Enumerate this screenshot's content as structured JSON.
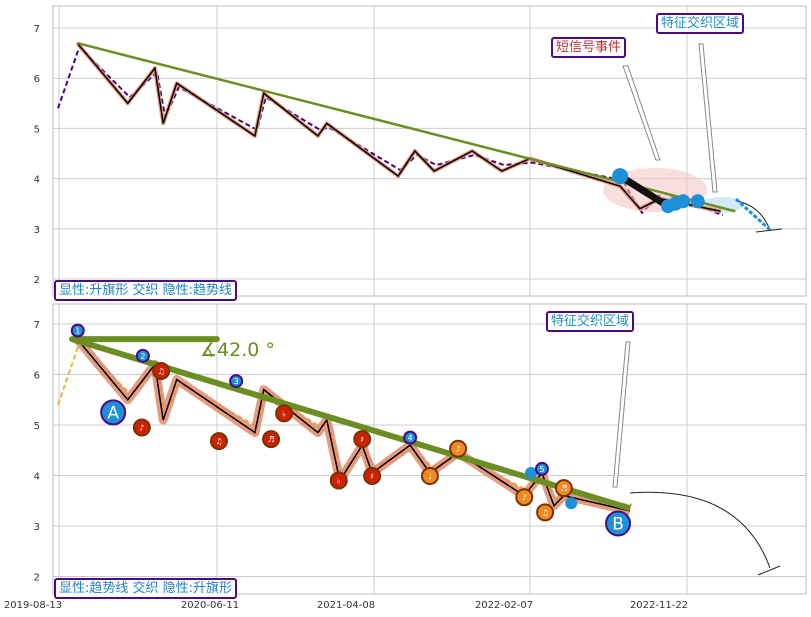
{
  "chart_data": [
    {
      "type": "line",
      "panel": "top",
      "ylim": [
        1.6,
        7.4
      ],
      "yticks": [
        2,
        3,
        4,
        5,
        6,
        7
      ],
      "x_unit": "days since 2019-08-13",
      "xlim": [
        -50,
        1440
      ],
      "grid": true,
      "zigzag": [
        [
          35,
          6.7
        ],
        [
          132,
          5.5
        ],
        [
          184,
          6.2
        ],
        [
          200,
          5.1
        ],
        [
          226,
          5.9
        ],
        [
          376,
          4.85
        ],
        [
          393,
          5.7
        ],
        [
          497,
          4.85
        ],
        [
          514,
          5.1
        ],
        [
          651,
          4.05
        ],
        [
          683,
          4.55
        ],
        [
          720,
          4.15
        ],
        [
          793,
          4.55
        ],
        [
          850,
          4.15
        ],
        [
          904,
          4.4
        ],
        [
          1077,
          3.85
        ],
        [
          1115,
          3.4
        ],
        [
          1154,
          3.6
        ],
        [
          1270,
          3.35
        ]
      ],
      "trendline": [
        [
          35,
          6.7
        ],
        [
          1298,
          3.35
        ]
      ],
      "event_dots": [
        [
          1077,
          4.05
        ],
        [
          1169,
          3.45
        ],
        [
          1183,
          3.5
        ],
        [
          1198,
          3.55
        ],
        [
          1226,
          3.55
        ]
      ],
      "annotations": {
        "short_signal": "短信号事件",
        "zone": "特征交织区域"
      },
      "legend": "显性:升旗形 交织 隐性:趋势线"
    },
    {
      "type": "line",
      "panel": "bottom",
      "ylim": [
        1.6,
        7.4
      ],
      "yticks": [
        2,
        3,
        4,
        5,
        6,
        7
      ],
      "xticks": [
        "2019-08-13",
        "2020-06-11",
        "2021-04-08",
        "2022-02-07",
        "2022-11-22"
      ],
      "zigzag": [
        [
          35,
          6.7
        ],
        [
          132,
          5.5
        ],
        [
          184,
          6.2
        ],
        [
          200,
          5.1
        ],
        [
          226,
          5.9
        ],
        [
          376,
          4.85
        ],
        [
          393,
          5.7
        ],
        [
          497,
          4.85
        ],
        [
          514,
          5.1
        ],
        [
          539,
          3.9
        ],
        [
          582,
          4.6
        ],
        [
          601,
          4.05
        ],
        [
          674,
          4.6
        ],
        [
          712,
          4.05
        ],
        [
          766,
          4.45
        ],
        [
          893,
          3.6
        ],
        [
          927,
          4.05
        ],
        [
          950,
          3.4
        ],
        [
          969,
          3.6
        ],
        [
          1096,
          3.3
        ]
      ],
      "trendline": [
        [
          25,
          6.7
        ],
        [
          1096,
          3.35
        ]
      ],
      "baseline": [
        [
          25,
          6.7
        ],
        [
          303,
          6.7
        ]
      ],
      "angle_label": "∡42.0 °",
      "markers": [
        {
          "d": 36,
          "v": 6.87,
          "t": "1",
          "c": "blue"
        },
        {
          "d": 104,
          "v": 5.25,
          "t": "A",
          "c": "bigblue"
        },
        {
          "d": 161,
          "v": 6.37,
          "t": "2",
          "c": "blue"
        },
        {
          "d": 159,
          "v": 4.95,
          "t": "♪",
          "c": "red"
        },
        {
          "d": 196,
          "v": 6.07,
          "t": "♫",
          "c": "red"
        },
        {
          "d": 340,
          "v": 5.87,
          "t": "3",
          "c": "blue"
        },
        {
          "d": 307,
          "v": 4.68,
          "t": "♫",
          "c": "red"
        },
        {
          "d": 407,
          "v": 4.72,
          "t": "♬",
          "c": "red"
        },
        {
          "d": 432,
          "v": 5.23,
          "t": "♭",
          "c": "red"
        },
        {
          "d": 537,
          "v": 3.9,
          "t": "♭",
          "c": "red"
        },
        {
          "d": 582,
          "v": 4.72,
          "t": "♯",
          "c": "red"
        },
        {
          "d": 601,
          "v": 3.99,
          "t": "♯",
          "c": "red"
        },
        {
          "d": 674,
          "v": 4.75,
          "t": "4",
          "c": "blue"
        },
        {
          "d": 712,
          "v": 3.99,
          "t": "♩",
          "c": "orange"
        },
        {
          "d": 766,
          "v": 4.53,
          "t": "♪",
          "c": "orange"
        },
        {
          "d": 893,
          "v": 3.57,
          "t": "♪",
          "c": "orange"
        },
        {
          "d": 906,
          "v": 4.05,
          "t": "",
          "c": "dot"
        },
        {
          "d": 927,
          "v": 4.13,
          "t": "5",
          "c": "blue"
        },
        {
          "d": 933,
          "v": 3.27,
          "t": "♫",
          "c": "orange"
        },
        {
          "d": 969,
          "v": 3.75,
          "t": "♬",
          "c": "orange"
        },
        {
          "d": 983,
          "v": 3.45,
          "t": "",
          "c": "dot"
        },
        {
          "d": 1073,
          "v": 3.05,
          "t": "B",
          "c": "bigblue"
        }
      ],
      "annotations": {
        "zone": "特征交织区域"
      },
      "legend": "显性:趋势线 交织 隐性:升旗形"
    }
  ],
  "colors": {
    "trend": "#6b8e23",
    "zig": "#000000",
    "halo": "#e08a6a",
    "price_top": "#4b0082",
    "price_bottom": "#f0b030",
    "blue": "#1e90d8",
    "red": "#cc2200",
    "orange": "#f08a20",
    "border": "#4b0a82"
  }
}
